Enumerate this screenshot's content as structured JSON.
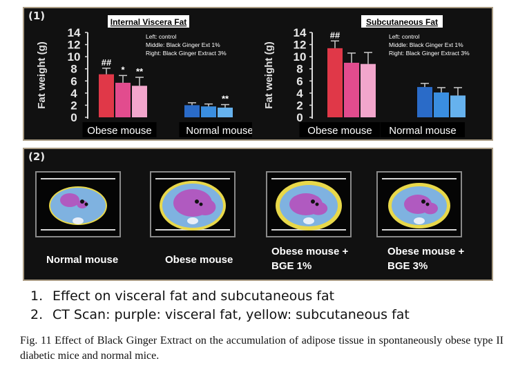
{
  "panel1": {
    "label": "(1)"
  },
  "panel2": {
    "label": "(2)"
  },
  "chart_data": [
    {
      "type": "bar",
      "title": "Internal Viscera Fat",
      "ylabel": "Fat weight (g)",
      "ylim": [
        0,
        14
      ],
      "yticks": [
        "0",
        "2",
        "4",
        "6",
        "8",
        "10",
        "12",
        "14"
      ],
      "categories": [
        "Obese mouse",
        "Normal mouse"
      ],
      "legend": [
        "Left: control",
        "Middle: Black Ginger Ext 1%",
        "Right: Black Ginger Extract 3%"
      ],
      "series": [
        {
          "name": "Left: control",
          "color": "#e03848",
          "values": [
            7.1,
            2.0
          ],
          "errors": [
            1.0,
            0.4
          ],
          "annotations": [
            "##",
            ""
          ]
        },
        {
          "name": "Middle: Black Ginger Ext 1%",
          "color": "#e24c8e",
          "values": [
            5.7,
            1.8
          ],
          "errors": [
            1.2,
            0.4
          ],
          "annotations": [
            "*",
            ""
          ]
        },
        {
          "name": "Right: Black Ginger Extract 3%",
          "color": "#f2a6cc",
          "values": [
            5.2,
            1.6
          ],
          "errors": [
            1.4,
            0.5
          ],
          "annotations": [
            "**",
            "**"
          ]
        }
      ]
    },
    {
      "type": "bar",
      "title": "Subcutaneous Fat",
      "ylabel": "Fat weight (g)",
      "ylim": [
        0,
        14
      ],
      "yticks": [
        "0",
        "2",
        "4",
        "6",
        "8",
        "10",
        "12",
        "14"
      ],
      "categories": [
        "Obese mouse",
        "Normal mouse"
      ],
      "legend": [
        "Left: control",
        "Middle: Black Ginger Ext 1%",
        "Right: Black Ginger Extract 3%"
      ],
      "series": [
        {
          "name": "Left: control",
          "color": "#e03848",
          "values": [
            11.4,
            5.0
          ],
          "errors": [
            1.2,
            0.6
          ],
          "annotations": [
            "##",
            ""
          ]
        },
        {
          "name": "Middle: Black Ginger Ext 1%",
          "color": "#e24c8e",
          "values": [
            9.0,
            4.1
          ],
          "errors": [
            1.6,
            0.8
          ],
          "annotations": [
            "",
            ""
          ]
        },
        {
          "name": "Right: Black Ginger Extract 3%",
          "color": "#f2a6cc",
          "values": [
            8.8,
            3.6
          ],
          "errors": [
            1.9,
            1.3
          ],
          "annotations": [
            "",
            ""
          ]
        }
      ]
    }
  ],
  "ct_scans": [
    {
      "caption": [
        "Normal mouse"
      ]
    },
    {
      "caption": [
        "Obese mouse"
      ]
    },
    {
      "caption": [
        "Obese mouse +",
        "BGE 1%"
      ]
    },
    {
      "caption": [
        "Obese mouse +",
        "BGE 3%"
      ]
    }
  ],
  "summary": [
    {
      "num": "1.",
      "text": "Effect on visceral fat and subcutaneous fat"
    },
    {
      "num": "2.",
      "text": "CT Scan: purple: visceral fat, yellow: subcutaneous fat"
    }
  ],
  "caption": "Fig. 11 Effect of Black Ginger Extract on the accumulation of adipose tissue in spontaneously obese type II diabetic mice and normal mice.",
  "colors": {
    "normal_bars": [
      "#2a6bc8",
      "#3a8ee0",
      "#66b2ee"
    ],
    "visceral_fat": "#b05ac0",
    "subcutaneous_fat": "#e8d84a",
    "lean_tissue": "#7fb2e0"
  }
}
